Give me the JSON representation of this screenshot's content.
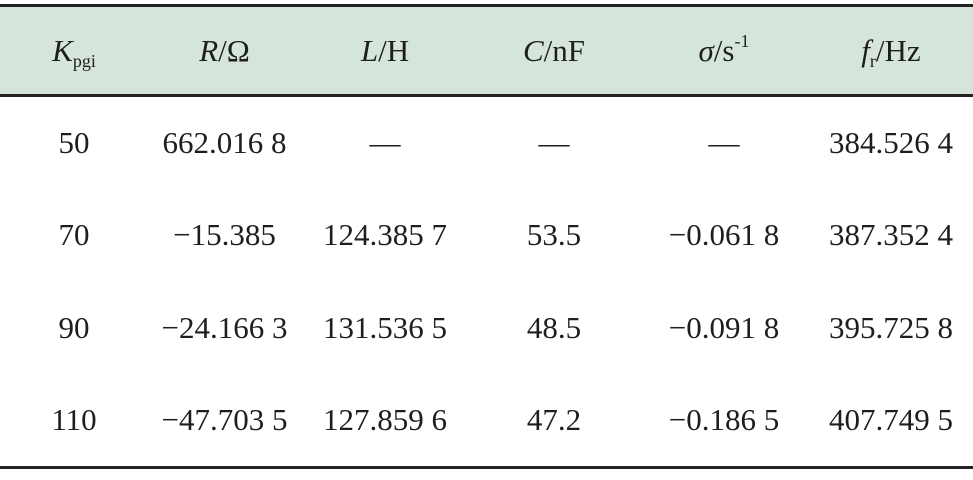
{
  "headers": [
    {
      "main": "K",
      "sub": "pgi",
      "unit": ""
    },
    {
      "main": "R",
      "unit": "/Ω"
    },
    {
      "main": "L",
      "unit": "/H"
    },
    {
      "main": "C",
      "unit": "/nF"
    },
    {
      "main": "σ",
      "unit": "/s",
      "sup": "-1"
    },
    {
      "main": "f",
      "sub": "r",
      "unit": "/Hz"
    }
  ],
  "rows": [
    [
      "50",
      "662.016 8",
      "—",
      "—",
      "—",
      "384.526 4"
    ],
    [
      "70",
      "−15.385",
      "124.385 7",
      "53.5",
      "−0.061 8",
      "387.352 4"
    ],
    [
      "90",
      "−24.166 3",
      "131.536 5",
      "48.5",
      "−0.091 8",
      "395.725 8"
    ],
    [
      "110",
      "−47.703 5",
      "127.859 6",
      "47.2",
      "−0.186 5",
      "407.749 5"
    ]
  ]
}
